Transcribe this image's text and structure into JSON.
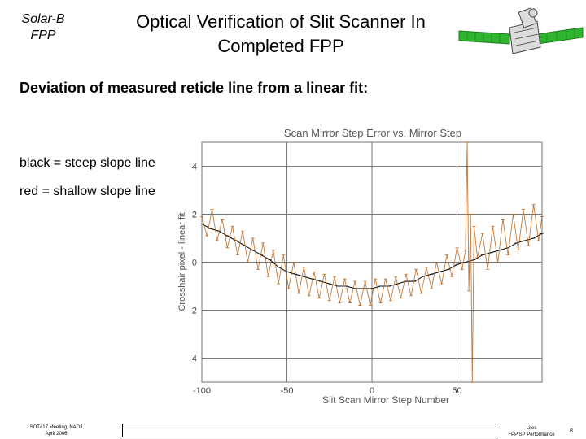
{
  "corner_label": {
    "line1": "Solar-B",
    "line2": "FPP"
  },
  "slide_title": {
    "line1": "Optical Verification of Slit Scanner In",
    "line2": "Completed FPP"
  },
  "subtitle": "Deviation of measured reticle line from a linear fit:",
  "legend_black": "black = steep slope line",
  "legend_red": "red = shallow slope line",
  "chart_data": {
    "type": "line",
    "title": "Scan Mirror Step Error vs. Mirror Step",
    "xlabel": "Slit Scan Mirror Step Number",
    "ylabel": "Crosshair pixel - linear fit",
    "xlim": [
      -100,
      100
    ],
    "ylim": [
      -5,
      5
    ],
    "xticks": [
      "-100",
      "-50",
      "0",
      "50"
    ],
    "yticks": [
      "4",
      "2",
      "0",
      "2",
      "-4"
    ],
    "grid": true,
    "series": [
      {
        "color": "#111111",
        "x": [
          -100,
          -95,
          -90,
          -85,
          -80,
          -75,
          -70,
          -65,
          -60,
          -55,
          -50,
          -45,
          -40,
          -35,
          -30,
          -25,
          -20,
          -15,
          -10,
          -5,
          0,
          5,
          10,
          15,
          20,
          25,
          30,
          35,
          40,
          45,
          50,
          55,
          60,
          65,
          70,
          75,
          80,
          85,
          90,
          95,
          100
        ],
        "y": [
          1.6,
          1.4,
          1.3,
          1.1,
          0.9,
          0.7,
          0.5,
          0.3,
          0.1,
          -0.2,
          -0.4,
          -0.5,
          -0.6,
          -0.7,
          -0.8,
          -0.9,
          -1.0,
          -1.0,
          -1.1,
          -1.1,
          -1.1,
          -1.0,
          -1.0,
          -0.9,
          -0.8,
          -0.8,
          -0.6,
          -0.5,
          -0.4,
          -0.3,
          -0.1,
          0.0,
          0.1,
          0.3,
          0.4,
          0.5,
          0.6,
          0.8,
          0.9,
          1.0,
          1.2
        ]
      },
      {
        "color": "#b5651d",
        "x": [
          -100,
          -97,
          -94,
          -91,
          -88,
          -85,
          -82,
          -79,
          -76,
          -73,
          -70,
          -67,
          -64,
          -61,
          -58,
          -55,
          -52,
          -49,
          -46,
          -43,
          -40,
          -37,
          -34,
          -31,
          -28,
          -25,
          -22,
          -19,
          -16,
          -13,
          -10,
          -7,
          -4,
          -1,
          2,
          5,
          8,
          11,
          14,
          17,
          20,
          23,
          26,
          29,
          32,
          35,
          38,
          41,
          44,
          47,
          50,
          53,
          55,
          56,
          57,
          58,
          59,
          60,
          62,
          65,
          68,
          71,
          74,
          77,
          80,
          83,
          86,
          89,
          92,
          95,
          98,
          100
        ],
        "y": [
          1.9,
          1.1,
          2.2,
          0.9,
          1.8,
          0.6,
          1.5,
          0.3,
          1.3,
          0.0,
          1.0,
          -0.3,
          0.8,
          -0.6,
          0.5,
          -0.9,
          0.3,
          -1.1,
          0.0,
          -1.3,
          -0.2,
          -1.4,
          -0.4,
          -1.5,
          -0.5,
          -1.6,
          -0.6,
          -1.7,
          -0.7,
          -1.7,
          -0.8,
          -1.8,
          -0.8,
          -1.8,
          -0.7,
          -1.7,
          -0.7,
          -1.6,
          -0.6,
          -1.5,
          -0.5,
          -1.4,
          -0.3,
          -1.3,
          -0.2,
          -1.1,
          0.0,
          -0.9,
          0.3,
          -0.6,
          0.6,
          -0.3,
          0.5,
          5.0,
          -1.2,
          2.0,
          -5.0,
          1.5,
          0.2,
          1.2,
          -0.3,
          1.5,
          0.0,
          1.8,
          0.3,
          2.0,
          0.5,
          2.2,
          0.7,
          2.4,
          0.9,
          1.9
        ]
      }
    ]
  },
  "footer_left": {
    "line1": "SOT#17 Meeting, NAOJ",
    "line2": "April  2006"
  },
  "footer_right": {
    "line1": "Lites",
    "line2": "FPP SP Performance"
  },
  "page_number": "8",
  "colors": {
    "chart_frame": "#888888",
    "satellite_green": "#2fb52f",
    "background": "#ffffff"
  },
  "icons": {
    "satellite": "satellite-icon"
  }
}
